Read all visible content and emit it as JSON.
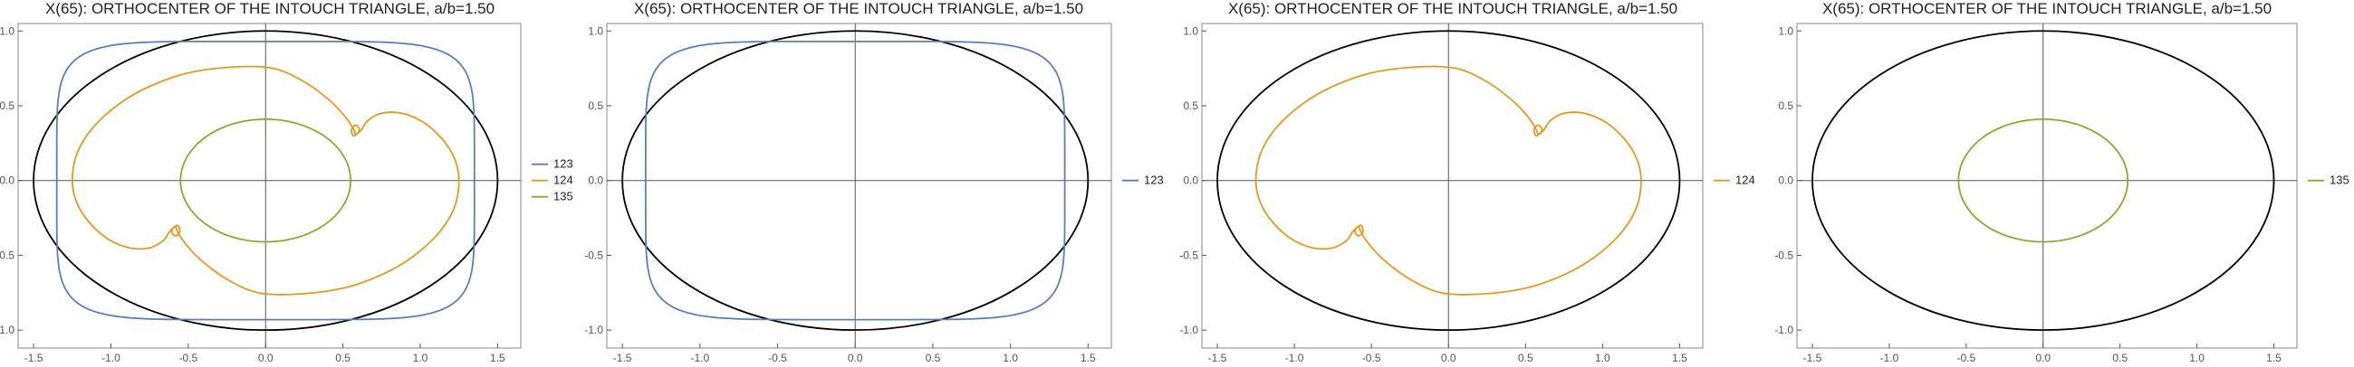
{
  "colors": {
    "123": "#5B7FB8",
    "124": "#E49A1F",
    "135": "#8AAA2A",
    "ellipse": "#000000",
    "axis": "#555555",
    "frame": "#888888"
  },
  "chart_data": [
    {
      "type": "line",
      "title": "X(65): ORTHOCENTER OF THE INTOUCH TRIANGLE, a/b=1.50",
      "xlim": [
        -1.6,
        1.65
      ],
      "ylim": [
        -1.12,
        1.05
      ],
      "x_ticks": [
        "-1.5",
        "-1.0",
        "-0.5",
        "0.0",
        "0.5",
        "1.0",
        "1.5"
      ],
      "y_ticks": [
        "-1.0",
        "-0.5",
        "0.0",
        "0.5",
        "1.0"
      ],
      "ellipse": {
        "a": 1.5,
        "b": 1.0
      },
      "legend_position": "right",
      "series": [
        {
          "name": "123",
          "kind": "superellipse",
          "rx": 1.35,
          "ry": 0.93
        },
        {
          "name": "124",
          "kind": "loop-curve"
        },
        {
          "name": "135",
          "kind": "ellipse",
          "rx": 0.55,
          "ry": 0.41
        }
      ]
    },
    {
      "type": "line",
      "title": "X(65): ORTHOCENTER OF THE INTOUCH TRIANGLE, a/b=1.50",
      "xlim": [
        -1.6,
        1.65
      ],
      "ylim": [
        -1.12,
        1.05
      ],
      "x_ticks": [
        "-1.5",
        "-1.0",
        "-0.5",
        "0.0",
        "0.5",
        "1.0",
        "1.5"
      ],
      "y_ticks": [
        "-1.0",
        "-0.5",
        "0.0",
        "0.5",
        "1.0"
      ],
      "ellipse": {
        "a": 1.5,
        "b": 1.0
      },
      "legend_position": "right",
      "series": [
        {
          "name": "123",
          "kind": "superellipse",
          "rx": 1.35,
          "ry": 0.93
        }
      ]
    },
    {
      "type": "line",
      "title": "X(65): ORTHOCENTER OF THE INTOUCH TRIANGLE, a/b=1.50",
      "xlim": [
        -1.6,
        1.65
      ],
      "ylim": [
        -1.12,
        1.05
      ],
      "x_ticks": [
        "-1.5",
        "-1.0",
        "-0.5",
        "0.0",
        "0.5",
        "1.0",
        "1.5"
      ],
      "y_ticks": [
        "-1.0",
        "-0.5",
        "0.0",
        "0.5",
        "1.0"
      ],
      "ellipse": {
        "a": 1.5,
        "b": 1.0
      },
      "legend_position": "right",
      "series": [
        {
          "name": "124",
          "kind": "loop-curve"
        }
      ]
    },
    {
      "type": "line",
      "title": "X(65): ORTHOCENTER OF THE INTOUCH TRIANGLE, a/b=1.50",
      "xlim": [
        -1.6,
        1.65
      ],
      "ylim": [
        -1.12,
        1.05
      ],
      "x_ticks": [
        "-1.5",
        "-1.0",
        "-0.5",
        "0.0",
        "0.5",
        "1.0",
        "1.5"
      ],
      "y_ticks": [
        "-1.0",
        "-0.5",
        "0.0",
        "0.5",
        "1.0"
      ],
      "ellipse": {
        "a": 1.5,
        "b": 1.0
      },
      "legend_position": "right",
      "series": [
        {
          "name": "135",
          "kind": "ellipse",
          "rx": 0.55,
          "ry": 0.41
        }
      ]
    }
  ]
}
